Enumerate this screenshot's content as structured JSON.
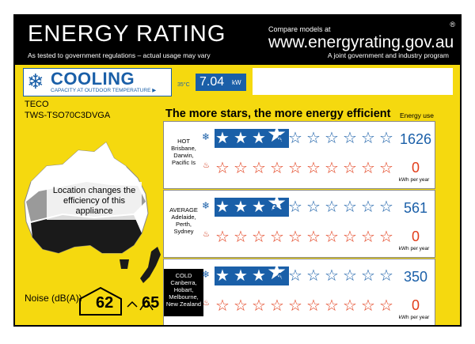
{
  "header": {
    "title": "ENERGY RATING",
    "subtitle": "As tested to government regulations – actual usage may vary",
    "compare": "Compare models at",
    "url": "www.energyrating.gov.au",
    "joint": "A joint government and industry program",
    "registered": "®"
  },
  "mode": {
    "label": "COOLING",
    "caption": "CAPACITY AT OUTDOOR TEMPERATURE ▶",
    "temperature": "35°C",
    "capacity": "7.04",
    "unit": "kW",
    "icon": "snowflake-icon"
  },
  "appliance": {
    "brand": "TECO",
    "model": "TWS-TSO70C3DVGA"
  },
  "tagline": "The more stars, the more energy efficient",
  "energy_use_label": "Energy use",
  "location_note": "Location changes the efficiency of this appliance",
  "zones": [
    {
      "name": "HOT",
      "places": "Brisbane, Darwin, Pacific Is",
      "cooling_rating": "4",
      "cooling_stars": 4,
      "cooling_energy": "1626",
      "heating_rating": "",
      "heating_stars": 0,
      "heating_energy": "0",
      "unit": "kWh per year"
    },
    {
      "name": "AVERAGE",
      "places": "Adelaide, Perth, Sydney",
      "cooling_rating": "3.5",
      "cooling_stars": 3.5,
      "cooling_energy": "561",
      "heating_rating": "",
      "heating_stars": 0,
      "heating_energy": "0",
      "unit": "kWh per year"
    },
    {
      "name": "COLD",
      "places": "Canberra, Hobart, Melbourne, New Zealand",
      "cooling_rating": "4",
      "cooling_stars": 4,
      "cooling_energy": "350",
      "heating_rating": "",
      "heating_stars": 0,
      "heating_energy": "0",
      "unit": "kWh per year"
    }
  ],
  "noise": {
    "label": "Noise (dB(A))",
    "indoor": "62",
    "outdoor": "65"
  },
  "colors": {
    "label_yellow": "#f5d90f",
    "energy_blue": "#1a5fa8",
    "heat_red": "#e23d1a",
    "header_black": "#000000"
  }
}
